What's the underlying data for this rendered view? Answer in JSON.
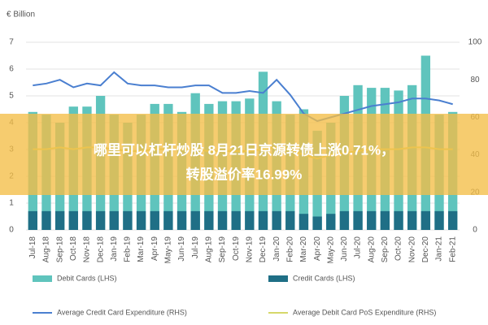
{
  "chart_data": {
    "type": "bar-line",
    "y_label": "€ Billion",
    "categories": [
      "Jul-18",
      "Aug-18",
      "Sep-18",
      "Oct-18",
      "Nov-18",
      "Dec-18",
      "Jan-19",
      "Feb-19",
      "Mar-19",
      "Apr-19",
      "May-19",
      "Jun-19",
      "Jul-19",
      "Aug-19",
      "Sep-19",
      "Oct-19",
      "Nov-19",
      "Dec-19",
      "Jan-20",
      "Feb-20",
      "Mar-20",
      "Apr-20",
      "May-20",
      "Jun-20",
      "Jul-20",
      "Aug-20",
      "Sep-20",
      "Oct-20",
      "Nov-20",
      "Dec-20",
      "Jan-21",
      "Feb-21"
    ],
    "series": [
      {
        "name": "Debit Cards (LHS)",
        "color": "#5fc4bd",
        "kind": "bar",
        "values": [
          4.4,
          4.3,
          4.0,
          4.6,
          4.6,
          5.0,
          4.3,
          4.0,
          4.3,
          4.7,
          4.7,
          4.4,
          5.1,
          4.7,
          4.8,
          4.8,
          4.9,
          5.9,
          4.8,
          4.3,
          4.5,
          3.7,
          4.0,
          5.0,
          5.4,
          5.3,
          5.3,
          5.2,
          5.4,
          6.5,
          4.3,
          4.4
        ]
      },
      {
        "name": "Credit Cards (LHS)",
        "color": "#1f6f86",
        "kind": "bar",
        "values": [
          0.7,
          0.7,
          0.7,
          0.7,
          0.7,
          0.7,
          0.7,
          0.7,
          0.7,
          0.7,
          0.7,
          0.7,
          0.7,
          0.7,
          0.7,
          0.7,
          0.7,
          0.7,
          0.7,
          0.7,
          0.6,
          0.5,
          0.6,
          0.7,
          0.7,
          0.7,
          0.7,
          0.7,
          0.7,
          0.7,
          0.7,
          0.7
        ]
      },
      {
        "name": "Average Credit Card Expenditure (RHS)",
        "color": "#4a7fd0",
        "kind": "line",
        "axis": "y2",
        "values": [
          77,
          78,
          80,
          76,
          78,
          77,
          84,
          78,
          77,
          77,
          76,
          76,
          77,
          77,
          73,
          73,
          74,
          73,
          80,
          72,
          62,
          58,
          60,
          62,
          64,
          66,
          67,
          68,
          70,
          70,
          69,
          67
        ]
      },
      {
        "name": "Average Debit Card PoS Expenditure (RHS)",
        "color": "#d6d86a",
        "kind": "line",
        "axis": "y2",
        "values": [
          43,
          43,
          44,
          43,
          44,
          44,
          43,
          42,
          42,
          43,
          43,
          43,
          43,
          42,
          42,
          42,
          42,
          43,
          44,
          43,
          40,
          38,
          40,
          41,
          42,
          43,
          43,
          43,
          44,
          44,
          43,
          43
        ]
      }
    ],
    "ylim": [
      0,
      7
    ],
    "yticks": [
      0,
      1,
      2,
      3,
      4,
      5,
      6,
      7
    ],
    "y2lim": [
      0,
      100
    ],
    "y2ticks": [
      0,
      20,
      40,
      60,
      80,
      100
    ],
    "grid": true,
    "banner": [
      "哪里可以杠杆炒股 8月21日京源转债上涨0.71%，",
      "转股溢价率16.99%"
    ]
  }
}
